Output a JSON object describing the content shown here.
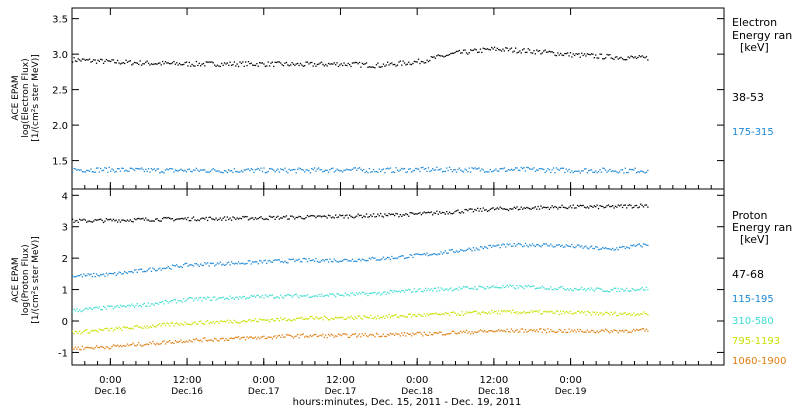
{
  "figure": {
    "xaxis_label": "hours:minutes, Dec. 15, 2011 - Dec. 19, 2011",
    "xticks": [
      {
        "time": "0:00",
        "date": "Dec.16"
      },
      {
        "time": "12:00",
        "date": "Dec.16"
      },
      {
        "time": "0:00",
        "date": "Dec.17"
      },
      {
        "time": "12:00",
        "date": "Dec.17"
      },
      {
        "time": "0:00",
        "date": "Dec.18"
      },
      {
        "time": "12:00",
        "date": "Dec.18"
      },
      {
        "time": "0:00",
        "date": "Dec.19"
      }
    ]
  },
  "chart_data": [
    {
      "type": "scatter",
      "panel": "electron",
      "ylabel_lines": [
        "ACE EPAM",
        "log(Electron Flux)",
        "[1/(cm²s ster MeV)]"
      ],
      "yticks": [
        "1.5",
        "2.0",
        "2.5",
        "3.0",
        "3.5"
      ],
      "ylim": [
        1.1,
        3.65
      ],
      "xlim_hours_from_Dec15_1800": [
        0,
        102
      ],
      "legend_title_lines": [
        "Electron",
        "Energy ran",
        "[keV]"
      ],
      "series": [
        {
          "name": "38-53",
          "color": "#000000",
          "x": [
            0,
            6,
            12,
            18,
            24,
            30,
            36,
            42,
            48,
            54,
            60,
            66,
            72,
            78,
            84,
            90
          ],
          "values": [
            2.93,
            2.9,
            2.88,
            2.87,
            2.87,
            2.87,
            2.86,
            2.87,
            2.85,
            2.9,
            3.02,
            3.08,
            3.05,
            3.0,
            2.97,
            2.95
          ]
        },
        {
          "name": "175-315",
          "color": "#1b87d6",
          "x": [
            0,
            6,
            12,
            18,
            24,
            30,
            36,
            42,
            48,
            54,
            60,
            66,
            72,
            78,
            84,
            90
          ],
          "values": [
            1.38,
            1.38,
            1.37,
            1.37,
            1.37,
            1.37,
            1.37,
            1.38,
            1.37,
            1.38,
            1.38,
            1.38,
            1.38,
            1.37,
            1.37,
            1.37
          ]
        }
      ]
    },
    {
      "type": "scatter",
      "panel": "proton",
      "ylabel_lines": [
        "ACE EPAM",
        "log(Proton Flux)",
        "[1/(cm²s ster MeV)]"
      ],
      "yticks": [
        "-1",
        "0",
        "1",
        "2",
        "3",
        "4"
      ],
      "ylim": [
        -1.4,
        4.2
      ],
      "xlim_hours_from_Dec15_1800": [
        0,
        102
      ],
      "legend_title_lines": [
        "Proton",
        "Energy ran",
        "[keV]"
      ],
      "series": [
        {
          "name": "47-68",
          "color": "#000000",
          "x": [
            0,
            6,
            12,
            18,
            24,
            30,
            36,
            42,
            48,
            54,
            60,
            66,
            72,
            78,
            84,
            90
          ],
          "values": [
            3.2,
            3.22,
            3.25,
            3.27,
            3.28,
            3.3,
            3.32,
            3.35,
            3.38,
            3.42,
            3.5,
            3.58,
            3.62,
            3.65,
            3.65,
            3.7
          ]
        },
        {
          "name": "115-195",
          "color": "#1b87d6",
          "x": [
            0,
            6,
            12,
            18,
            24,
            30,
            36,
            42,
            48,
            54,
            60,
            66,
            72,
            78,
            84,
            90
          ],
          "values": [
            1.45,
            1.5,
            1.65,
            1.8,
            1.85,
            1.9,
            1.95,
            1.95,
            2.0,
            2.1,
            2.25,
            2.4,
            2.45,
            2.4,
            2.3,
            2.45
          ]
        },
        {
          "name": "310-580",
          "color": "#3fdcd0",
          "x": [
            0,
            6,
            12,
            18,
            24,
            30,
            36,
            42,
            48,
            54,
            60,
            66,
            72,
            78,
            84,
            90
          ],
          "values": [
            0.35,
            0.45,
            0.55,
            0.7,
            0.75,
            0.8,
            0.82,
            0.85,
            0.9,
            1.0,
            1.05,
            1.1,
            1.1,
            1.05,
            1.0,
            1.05
          ]
        },
        {
          "name": "795-1193",
          "color": "#c8e000",
          "x": [
            0,
            6,
            12,
            18,
            24,
            30,
            36,
            42,
            48,
            54,
            60,
            66,
            72,
            78,
            84,
            90
          ],
          "values": [
            -0.35,
            -0.25,
            -0.15,
            -0.05,
            0.0,
            0.05,
            0.1,
            0.12,
            0.15,
            0.2,
            0.25,
            0.3,
            0.3,
            0.28,
            0.25,
            0.25
          ]
        },
        {
          "name": "1060-1900",
          "color": "#e07c10",
          "x": [
            0,
            6,
            12,
            18,
            24,
            30,
            36,
            42,
            48,
            54,
            60,
            66,
            72,
            78,
            84,
            90
          ],
          "values": [
            -0.85,
            -0.8,
            -0.7,
            -0.6,
            -0.55,
            -0.5,
            -0.45,
            -0.45,
            -0.42,
            -0.4,
            -0.35,
            -0.3,
            -0.28,
            -0.3,
            -0.3,
            -0.28
          ]
        }
      ]
    }
  ]
}
